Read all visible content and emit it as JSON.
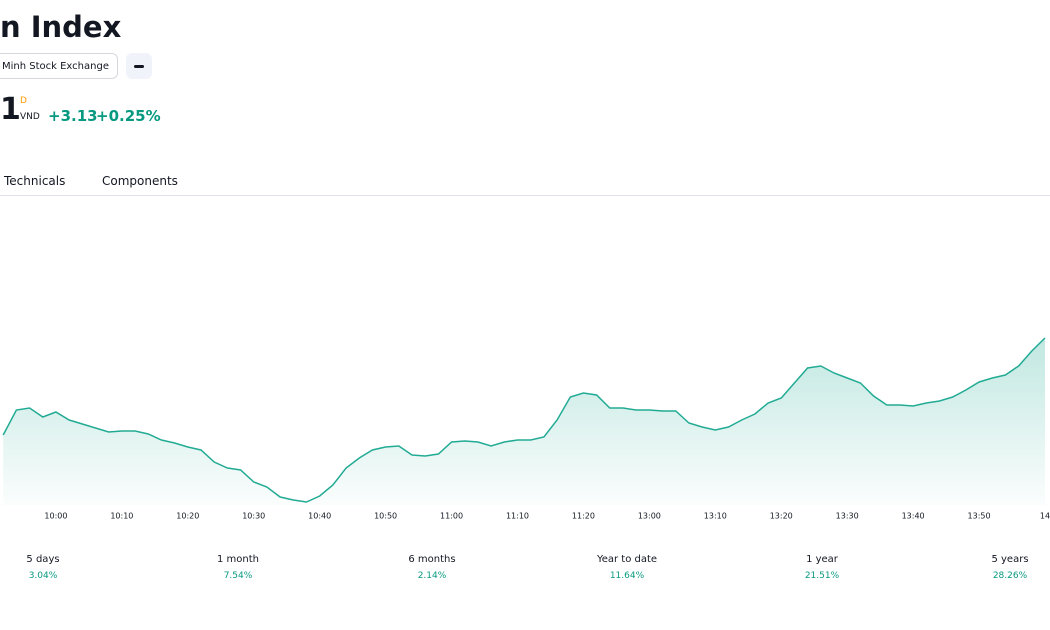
{
  "header": {
    "title": "n Index",
    "exchange": "Minh Stock Exchange",
    "price": "1",
    "price_flag": "D",
    "currency": "VND",
    "change": "+3.13",
    "change_percent": "+0.25%"
  },
  "tabs": [
    "Technicals",
    "Components"
  ],
  "chart_data": {
    "type": "line",
    "categories": [
      null,
      null,
      null,
      null,
      "10:00",
      null,
      null,
      null,
      null,
      "10:10",
      null,
      null,
      null,
      null,
      "10:20",
      null,
      null,
      null,
      null,
      "10:30",
      null,
      null,
      null,
      null,
      "10:40",
      null,
      null,
      null,
      null,
      "10:50",
      null,
      null,
      null,
      null,
      "11:00",
      null,
      null,
      null,
      null,
      "11:10",
      null,
      null,
      null,
      null,
      "11:20",
      null,
      null,
      null,
      null,
      "13:00",
      null,
      null,
      null,
      null,
      "13:10",
      null,
      null,
      null,
      null,
      "13:20",
      null,
      null,
      null,
      null,
      "13:30",
      null,
      null,
      null,
      null,
      "13:40",
      null,
      null,
      null,
      null,
      "13:50",
      null,
      null,
      null,
      null,
      "14"
    ],
    "values": [
      75,
      100,
      102,
      93,
      98,
      90,
      86,
      82,
      78,
      79,
      79,
      76,
      70,
      67,
      63,
      60,
      48,
      42,
      40,
      28,
      23,
      13,
      10,
      8,
      14,
      25,
      42,
      52,
      60,
      63,
      64,
      55,
      54,
      56,
      68,
      69,
      68,
      64,
      68,
      70,
      70,
      73,
      90,
      113,
      117,
      115,
      102,
      102,
      100,
      100,
      99,
      99,
      87,
      83,
      80,
      83,
      90,
      96,
      107,
      112,
      127,
      142,
      144,
      137,
      132,
      127,
      114,
      105,
      105,
      104,
      107,
      109,
      113,
      120,
      128,
      132,
      135,
      144,
      159,
      172
    ],
    "ylim": [
      0,
      300
    ],
    "color": "#22ab94"
  },
  "performance": [
    {
      "period": "5 days",
      "value": "3.04%"
    },
    {
      "period": "1 month",
      "value": "7.54%"
    },
    {
      "period": "6 months",
      "value": "2.14%"
    },
    {
      "period": "Year to date",
      "value": "11.64%"
    },
    {
      "period": "1 year",
      "value": "21.51%"
    },
    {
      "period": "5 years",
      "value": "28.26%"
    }
  ]
}
